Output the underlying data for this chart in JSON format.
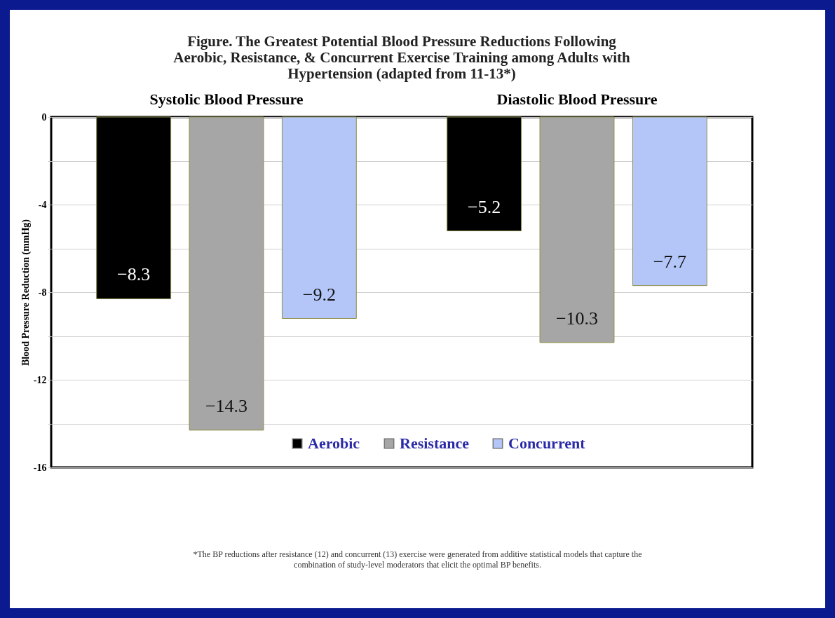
{
  "chart_data": {
    "type": "bar",
    "title": "Figure. The Greatest Potential Blood Pressure Reductions Following Aerobic, Resistance, & Concurrent Exercise Training among Adults with Hypertension (adapted from 11-13*)",
    "ylabel": "Blood Pressure Reduction (mmHg)",
    "categories": [
      "Systolic Blood Pressure",
      "Diastolic Blood Pressure"
    ],
    "series": [
      {
        "name": "Aerobic",
        "color": "#000000",
        "values": [
          -8.3,
          -5.2
        ]
      },
      {
        "name": "Resistance",
        "color": "#a6a6a6",
        "values": [
          -14.3,
          -10.3
        ]
      },
      {
        "name": "Concurrent",
        "color": "#b4c6f8",
        "values": [
          -9.2,
          -7.7
        ]
      }
    ],
    "ylim": [
      -16,
      0
    ],
    "yticks": [
      -16,
      {
        "value": -14,
        "label": null
      },
      -12,
      {
        "value": -10,
        "label": null
      },
      -8,
      {
        "value": -6,
        "label": null
      },
      -4,
      {
        "value": -2,
        "label": null
      },
      0
    ],
    "grid": "y",
    "legend": "bottom",
    "data_labels": true,
    "annotations": [
      "*The BP reductions after resistance (12) and concurrent (13) exercise were generated from additive statistical models that capture the combination of study-level moderators that elicit the optimal BP benefits."
    ]
  }
}
